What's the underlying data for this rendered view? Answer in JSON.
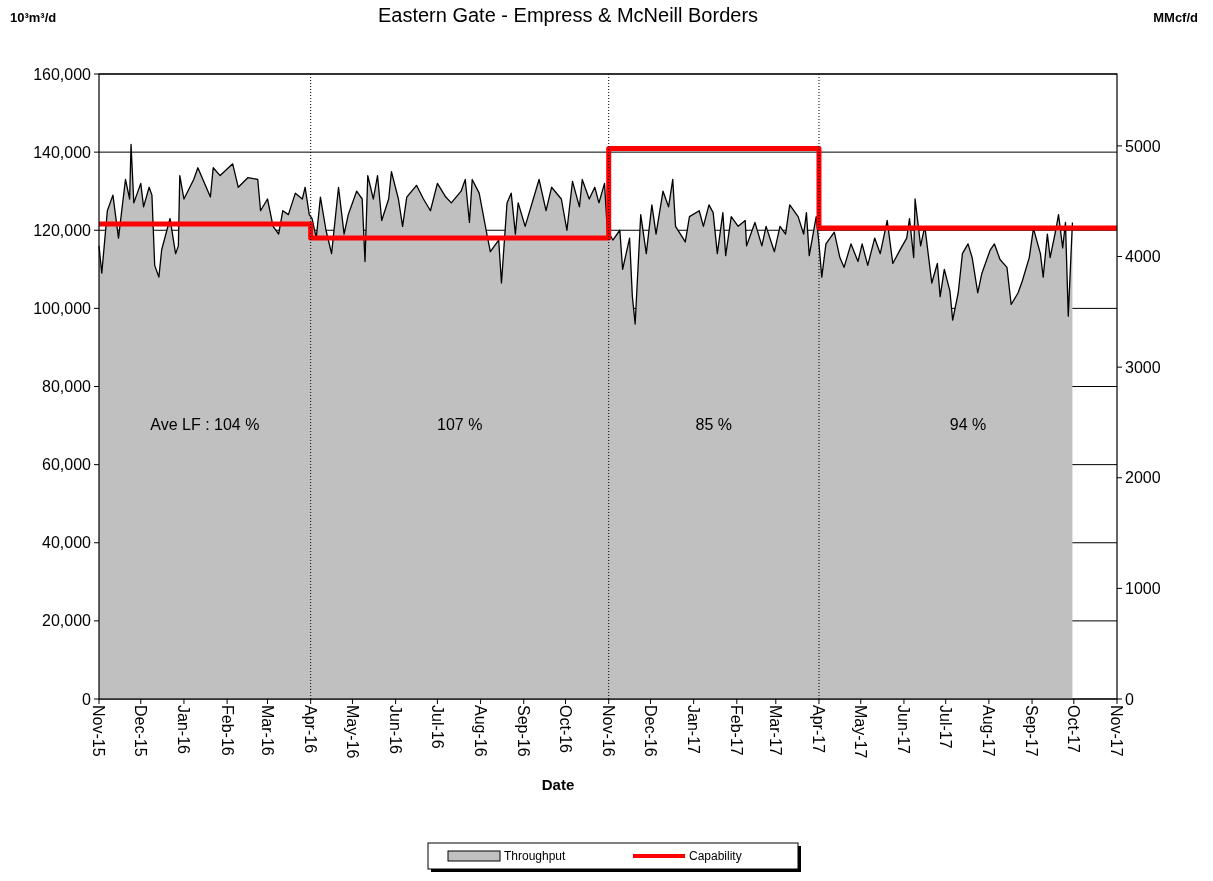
{
  "chart_data": {
    "type": "area",
    "title": "Eastern Gate - Empress & McNeill Borders",
    "xlabel": "Date",
    "ylabel": "10³m³/d",
    "y2label": "MMcf/d",
    "xlim": [
      "2015-11-01",
      "2017-11-01"
    ],
    "xticks": [
      {
        "value": "2015-11-01",
        "label": "Nov-15"
      },
      {
        "value": "2015-12-01",
        "label": "Dec-15"
      },
      {
        "value": "2016-01-01",
        "label": "Jan-16"
      },
      {
        "value": "2016-02-01",
        "label": "Feb-16"
      },
      {
        "value": "2016-03-01",
        "label": "Mar-16"
      },
      {
        "value": "2016-04-01",
        "label": "Apr-16"
      },
      {
        "value": "2016-05-01",
        "label": "May-16"
      },
      {
        "value": "2016-06-01",
        "label": "Jun-16"
      },
      {
        "value": "2016-07-01",
        "label": "Jul-16"
      },
      {
        "value": "2016-08-01",
        "label": "Aug-16"
      },
      {
        "value": "2016-09-01",
        "label": "Sep-16"
      },
      {
        "value": "2016-10-01",
        "label": "Oct-16"
      },
      {
        "value": "2016-11-01",
        "label": "Nov-16"
      },
      {
        "value": "2016-12-01",
        "label": "Dec-16"
      },
      {
        "value": "2017-01-01",
        "label": "Jan-17"
      },
      {
        "value": "2017-02-01",
        "label": "Feb-17"
      },
      {
        "value": "2017-03-01",
        "label": "Mar-17"
      },
      {
        "value": "2017-04-01",
        "label": "Apr-17"
      },
      {
        "value": "2017-05-01",
        "label": "May-17"
      },
      {
        "value": "2017-06-01",
        "label": "Jun-17"
      },
      {
        "value": "2017-07-01",
        "label": "Jul-17"
      },
      {
        "value": "2017-08-01",
        "label": "Aug-17"
      },
      {
        "value": "2017-09-01",
        "label": "Sep-17"
      },
      {
        "value": "2017-10-01",
        "label": "Oct-17"
      },
      {
        "value": "2017-11-01",
        "label": "Nov-17"
      }
    ],
    "ylim": [
      0,
      160000
    ],
    "yticks": [
      {
        "value": 0,
        "label": "0"
      },
      {
        "value": 20000,
        "label": "20,000"
      },
      {
        "value": 40000,
        "label": "40,000"
      },
      {
        "value": 60000,
        "label": "60,000"
      },
      {
        "value": 80000,
        "label": "80,000"
      },
      {
        "value": 100000,
        "label": "100,000"
      },
      {
        "value": 120000,
        "label": "120,000"
      },
      {
        "value": 140000,
        "label": "140,000"
      },
      {
        "value": 160000,
        "label": "160,000"
      }
    ],
    "y2lim": [
      0,
      5650
    ],
    "y2ticks": [
      0,
      1000,
      2000,
      3000,
      4000,
      5000
    ],
    "grid": "y",
    "legend": "bottom",
    "ref_lines": [
      {
        "axis": "x",
        "value": "2016-04-01",
        "line_style": "dotted"
      },
      {
        "axis": "x",
        "value": "2016-11-01",
        "line_style": "dotted"
      },
      {
        "axis": "x",
        "value": "2017-04-01",
        "line_style": "dotted"
      }
    ],
    "annotations": [
      "Ave LF : 104 %",
      "107 %",
      "85 %",
      "94 %"
    ],
    "series": [
      {
        "name": "Throughput",
        "type": "area",
        "color": "#c0c0c0",
        "x": [
          "2015-11-01",
          "2015-11-03",
          "2015-11-07",
          "2015-11-11",
          "2015-11-15",
          "2015-11-20",
          "2015-11-23",
          "2015-11-24",
          "2015-11-26",
          "2015-12-01",
          "2015-12-03",
          "2015-12-07",
          "2015-12-09",
          "2015-12-11",
          "2015-12-14",
          "2015-12-16",
          "2015-12-22",
          "2015-12-26",
          "2015-12-28",
          "2015-12-29",
          "2016-01-01",
          "2016-01-08",
          "2016-01-11",
          "2016-01-20",
          "2016-01-22",
          "2016-01-27",
          "2016-02-05",
          "2016-02-09",
          "2016-02-16",
          "2016-02-23",
          "2016-02-25",
          "2016-03-01",
          "2016-03-05",
          "2016-03-09",
          "2016-03-12",
          "2016-03-16",
          "2016-03-21",
          "2016-03-26",
          "2016-03-28",
          "2016-03-31",
          "2016-04-02",
          "2016-04-05",
          "2016-04-08",
          "2016-04-12",
          "2016-04-16",
          "2016-04-21",
          "2016-04-25",
          "2016-04-28",
          "2016-05-04",
          "2016-05-08",
          "2016-05-10",
          "2016-05-12",
          "2016-05-16",
          "2016-05-19",
          "2016-05-22",
          "2016-05-27",
          "2016-05-29",
          "2016-06-03",
          "2016-06-06",
          "2016-06-09",
          "2016-06-16",
          "2016-06-21",
          "2016-06-26",
          "2016-07-01",
          "2016-07-07",
          "2016-07-11",
          "2016-07-18",
          "2016-07-21",
          "2016-07-24",
          "2016-07-26",
          "2016-07-31",
          "2016-08-05",
          "2016-08-08",
          "2016-08-14",
          "2016-08-16",
          "2016-08-20",
          "2016-08-23",
          "2016-08-26",
          "2016-08-28",
          "2016-09-02",
          "2016-09-12",
          "2016-09-17",
          "2016-09-21",
          "2016-09-28",
          "2016-10-02",
          "2016-10-06",
          "2016-10-11",
          "2016-10-13",
          "2016-10-18",
          "2016-10-22",
          "2016-10-25",
          "2016-10-29",
          "2016-10-31",
          "2016-11-04",
          "2016-11-09",
          "2016-11-11",
          "2016-11-16",
          "2016-11-18",
          "2016-11-20",
          "2016-11-24",
          "2016-11-28",
          "2016-12-02",
          "2016-12-05",
          "2016-12-10",
          "2016-12-14",
          "2016-12-17",
          "2016-12-19",
          "2016-12-26",
          "2016-12-29",
          "2017-01-05",
          "2017-01-08",
          "2017-01-12",
          "2017-01-15",
          "2017-01-18",
          "2017-01-22",
          "2017-01-24",
          "2017-01-28",
          "2017-02-02",
          "2017-02-07",
          "2017-02-08",
          "2017-02-14",
          "2017-02-19",
          "2017-02-22",
          "2017-02-28",
          "2017-03-04",
          "2017-03-08",
          "2017-03-11",
          "2017-03-17",
          "2017-03-21",
          "2017-03-23",
          "2017-03-25",
          "2017-03-30",
          "2017-04-01",
          "2017-04-03",
          "2017-04-06",
          "2017-04-12",
          "2017-04-16",
          "2017-04-19",
          "2017-04-24",
          "2017-04-29",
          "2017-05-02",
          "2017-05-06",
          "2017-05-11",
          "2017-05-15",
          "2017-05-20",
          "2017-05-24",
          "2017-05-30",
          "2017-06-03",
          "2017-06-05",
          "2017-06-08",
          "2017-06-09",
          "2017-06-13",
          "2017-06-16",
          "2017-06-21",
          "2017-06-25",
          "2017-06-27",
          "2017-06-30",
          "2017-07-04",
          "2017-07-06",
          "2017-07-10",
          "2017-07-13",
          "2017-07-17",
          "2017-07-20",
          "2017-07-24",
          "2017-07-27",
          "2017-08-02",
          "2017-08-05",
          "2017-08-09",
          "2017-08-14",
          "2017-08-17",
          "2017-08-22",
          "2017-08-25",
          "2017-08-30",
          "2017-09-02",
          "2017-09-07",
          "2017-09-09",
          "2017-09-12",
          "2017-09-14",
          "2017-09-18",
          "2017-09-20",
          "2017-09-23",
          "2017-09-25",
          "2017-09-27",
          "2017-09-30"
        ],
        "values": [
          116000,
          109000,
          125000,
          129000,
          118000,
          133000,
          128000,
          142000,
          127000,
          132000,
          126000,
          131000,
          129000,
          111000,
          108000,
          115000,
          123000,
          114000,
          116000,
          134000,
          128000,
          133000,
          136000,
          128500,
          136000,
          134000,
          137000,
          131000,
          133500,
          133000,
          125000,
          128000,
          121000,
          119000,
          125000,
          124000,
          129500,
          128000,
          131000,
          124000,
          123000,
          118000,
          128500,
          120000,
          114000,
          131000,
          119000,
          124000,
          130000,
          128000,
          112000,
          134000,
          128000,
          134000,
          122500,
          128000,
          135000,
          128000,
          121000,
          128500,
          131500,
          128000,
          125000,
          132000,
          128500,
          127000,
          130000,
          133000,
          122000,
          133000,
          129500,
          120000,
          114500,
          117500,
          106500,
          127000,
          129500,
          119000,
          127000,
          121000,
          133000,
          125000,
          131000,
          128000,
          120000,
          132500,
          126000,
          133000,
          128000,
          131000,
          127000,
          132000,
          120000,
          117500,
          120000,
          110000,
          118000,
          103000,
          96000,
          124000,
          114000,
          126500,
          119000,
          130000,
          126000,
          133000,
          121000,
          117000,
          123500,
          125000,
          121000,
          126500,
          124500,
          114000,
          124500,
          113500,
          123500,
          121000,
          122500,
          116000,
          122000,
          116000,
          121000,
          114500,
          121000,
          119000,
          126500,
          123500,
          119000,
          124500,
          113500,
          123500,
          116500,
          108000,
          116500,
          119500,
          113000,
          110500,
          116500,
          112000,
          116500,
          111000,
          118000,
          114000,
          122500,
          111500,
          115500,
          118000,
          123000,
          113000,
          128000,
          116000,
          121000,
          106500,
          111500,
          103000,
          110000,
          104500,
          97000,
          104000,
          114000,
          116500,
          113000,
          104000,
          109000,
          115000,
          116500,
          112500,
          110500,
          101000,
          104000,
          107000,
          113000,
          120500,
          114000,
          108000,
          119000,
          113000,
          120000,
          124000,
          115500,
          122000,
          98000,
          122000
        ]
      },
      {
        "name": "Capability",
        "type": "step",
        "color": "#ff0000",
        "x": [
          "2015-11-01",
          "2016-04-01",
          "2016-11-01",
          "2017-04-01",
          "2017-11-01"
        ],
        "values": [
          121600,
          118000,
          140900,
          120600,
          120600
        ]
      }
    ]
  }
}
